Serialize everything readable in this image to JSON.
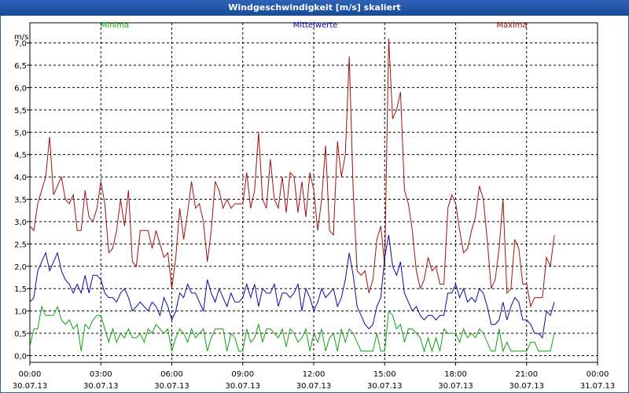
{
  "window": {
    "title": "Windgeschwindigkeit [m/s] skaliert"
  },
  "chart_data": {
    "type": "line",
    "ylabel": "m/s",
    "ylim": [
      -0.15,
      7.45
    ],
    "y_ticks": [
      "0,0",
      "0,5",
      "1,0",
      "1,5",
      "2,0",
      "2,5",
      "3,0",
      "3,5",
      "4,0",
      "4,5",
      "5,0",
      "5,5",
      "6,0",
      "6,5",
      "7,0"
    ],
    "x_ticks": [
      {
        "time": "00:00",
        "date": "30.07.13"
      },
      {
        "time": "03:00",
        "date": "30.07.13"
      },
      {
        "time": "06:00",
        "date": "30.07.13"
      },
      {
        "time": "09:00",
        "date": "30.07.13"
      },
      {
        "time": "12:00",
        "date": "30.07.13"
      },
      {
        "time": "15:00",
        "date": "30.07.13"
      },
      {
        "time": "18:00",
        "date": "30.07.13"
      },
      {
        "time": "21:00",
        "date": "30.07.13"
      },
      {
        "time": "00:00",
        "date": "31.07.13"
      }
    ],
    "x_range_hours": [
      0,
      24
    ],
    "grid": true,
    "series": [
      {
        "name": "Maxima",
        "color": "#a01010",
        "step_hours": 0.1667,
        "values": [
          2.9,
          2.8,
          3.4,
          3.7,
          4.0,
          4.9,
          3.6,
          3.8,
          4.0,
          3.5,
          3.4,
          3.6,
          2.8,
          2.8,
          3.7,
          3.1,
          3.0,
          3.3,
          3.9,
          3.4,
          2.3,
          2.4,
          2.8,
          3.5,
          2.9,
          3.7,
          2.1,
          2.0,
          2.8,
          2.8,
          2.8,
          2.4,
          2.8,
          2.5,
          2.2,
          2.3,
          1.5,
          2.2,
          3.3,
          2.6,
          3.2,
          3.9,
          3.3,
          3.4,
          3.0,
          2.1,
          2.8,
          3.9,
          3.7,
          3.3,
          3.5,
          3.3,
          3.4,
          3.4,
          3.4,
          4.1,
          3.3,
          3.7,
          5.0,
          3.5,
          3.3,
          4.4,
          3.5,
          3.3,
          4.0,
          3.2,
          4.1,
          4.0,
          3.2,
          3.9,
          3.1,
          4.1,
          3.7,
          2.8,
          3.5,
          4.7,
          2.8,
          2.7,
          4.8,
          4.0,
          4.5,
          6.7,
          3.7,
          1.9,
          1.8,
          1.9,
          1.4,
          1.7,
          2.6,
          2.9,
          2.0,
          7.1,
          5.3,
          5.5,
          5.9,
          3.7,
          3.4,
          2.8,
          1.9,
          1.5,
          1.7,
          2.2,
          1.9,
          2.0,
          1.6,
          1.6,
          3.3,
          3.6,
          3.4,
          2.8,
          2.3,
          2.4,
          2.8,
          3.1,
          3.8,
          3.5,
          2.6,
          1.5,
          1.7,
          2.4,
          3.5,
          1.4,
          1.5,
          2.6,
          2.4,
          1.6,
          1.6,
          1.1,
          1.3,
          1.3,
          1.3,
          2.2,
          2.0,
          2.7
        ]
      },
      {
        "name": "Mittelwerte",
        "color": "#0a0aa0",
        "step_hours": 0.1667,
        "values": [
          1.2,
          1.3,
          1.9,
          2.1,
          2.3,
          1.9,
          2.1,
          2.3,
          1.9,
          1.7,
          1.6,
          1.4,
          1.6,
          1.4,
          1.8,
          1.4,
          1.8,
          1.8,
          1.7,
          1.4,
          1.3,
          1.3,
          1.2,
          1.4,
          1.5,
          1.3,
          1.0,
          1.1,
          1.2,
          1.1,
          1.0,
          1.2,
          1.1,
          0.9,
          1.3,
          1.1,
          0.8,
          1.0,
          1.4,
          1.3,
          1.6,
          1.4,
          1.4,
          1.2,
          1.0,
          1.7,
          1.4,
          1.2,
          1.5,
          1.3,
          1.1,
          1.4,
          1.2,
          1.2,
          1.3,
          1.6,
          1.3,
          1.6,
          1.1,
          1.5,
          1.4,
          1.4,
          1.6,
          1.1,
          1.4,
          1.4,
          1.3,
          1.4,
          1.6,
          1.0,
          1.5,
          1.3,
          1.0,
          1.2,
          1.5,
          1.3,
          1.4,
          1.5,
          1.1,
          1.3,
          1.7,
          2.3,
          1.8,
          1.1,
          0.9,
          0.7,
          0.6,
          0.7,
          1.1,
          1.3,
          2.2,
          2.7,
          2.0,
          1.8,
          2.1,
          1.4,
          1.2,
          1.0,
          1.1,
          0.9,
          0.8,
          0.9,
          0.9,
          0.8,
          0.9,
          0.9,
          1.4,
          1.4,
          1.6,
          1.3,
          1.5,
          1.2,
          1.3,
          1.2,
          1.5,
          1.4,
          1.1,
          0.7,
          0.7,
          0.8,
          1.2,
          0.8,
          1.1,
          1.3,
          1.2,
          0.8,
          0.8,
          0.7,
          0.5,
          0.5,
          0.4,
          1.0,
          0.9,
          1.2
        ]
      },
      {
        "name": "Minima",
        "color": "#10a010",
        "step_hours": 0.1667,
        "values": [
          0.2,
          0.6,
          0.6,
          1.1,
          0.9,
          0.9,
          0.9,
          1.1,
          0.8,
          0.7,
          0.8,
          0.6,
          0.7,
          0.1,
          0.7,
          0.6,
          0.8,
          0.9,
          0.9,
          0.6,
          0.3,
          0.6,
          0.3,
          0.5,
          0.4,
          0.6,
          0.4,
          0.4,
          0.5,
          0.3,
          0.6,
          0.5,
          0.7,
          0.6,
          0.5,
          0.6,
          0.1,
          0.4,
          0.6,
          0.5,
          0.3,
          0.6,
          0.4,
          0.5,
          0.6,
          0.1,
          0.4,
          0.6,
          0.6,
          0.6,
          0.1,
          0.5,
          0.4,
          0.1,
          0.1,
          0.6,
          0.3,
          0.4,
          0.7,
          0.3,
          0.6,
          0.6,
          0.5,
          0.4,
          0.6,
          0.2,
          0.6,
          0.5,
          0.3,
          0.4,
          0.6,
          0.1,
          0.5,
          0.3,
          0.6,
          0.1,
          0.4,
          0.5,
          0.1,
          0.6,
          0.3,
          0.6,
          0.5,
          0.3,
          0.1,
          0.1,
          0.1,
          0.1,
          0.5,
          0.1,
          0.1,
          1.0,
          0.9,
          0.6,
          0.7,
          0.3,
          0.6,
          0.6,
          0.5,
          0.4,
          0.1,
          0.4,
          0.1,
          0.4,
          0.1,
          0.6,
          0.5,
          0.5,
          0.5,
          0.3,
          0.6,
          0.4,
          0.5,
          0.4,
          0.6,
          0.5,
          0.3,
          0.1,
          0.1,
          0.6,
          0.1,
          0.3,
          0.1,
          0.1,
          0.1,
          0.1,
          0.1,
          0.3,
          0.3,
          0.1,
          0.1,
          0.1,
          0.1,
          0.5
        ]
      }
    ]
  }
}
